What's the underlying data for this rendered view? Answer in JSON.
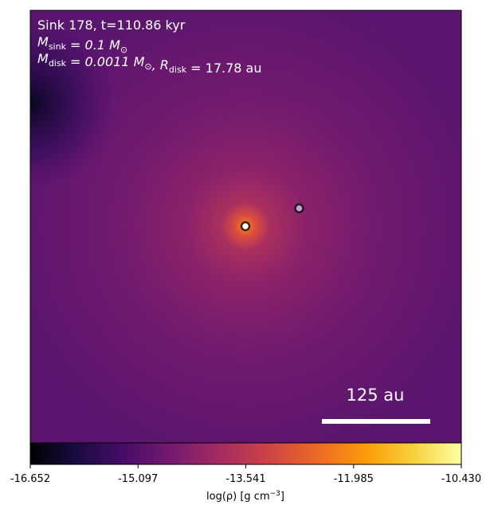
{
  "chart_data": {
    "type": "density-map",
    "annotations": [
      [
        {
          "text": "Sink 178, t=110.86 kyr"
        }
      ],
      [
        {
          "text": "M",
          "sub": "sink"
        },
        {
          "text": " = 0.1 M",
          "sub": "⊙"
        }
      ],
      [
        {
          "text": "M",
          "sub": "disk"
        },
        {
          "text": " = 0.0011 M",
          "sub": "⊙"
        },
        {
          "text": ", R",
          "sub": "disk"
        },
        {
          "text": " = 17.78 au"
        }
      ]
    ],
    "scale_bar_label": "125 au",
    "colormap": "inferno",
    "clim": [
      -16.652,
      -10.43
    ],
    "cticks": [
      -16.652,
      -15.097,
      -13.541,
      -11.985,
      {
        "value": -10.43,
        "label": "-10.430"
      }
    ],
    "colorbar_label": {
      "text": "log(ρ) [g cm",
      "sup": "−3",
      "end": "]"
    }
  }
}
